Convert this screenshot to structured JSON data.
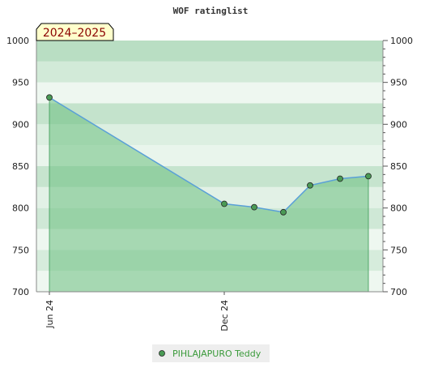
{
  "chart_data": {
    "type": "area",
    "title": "WOF ratinglist",
    "season_label": "2024–2025",
    "ylim": [
      700,
      1000
    ],
    "y_ticks": [
      700,
      750,
      800,
      850,
      900,
      950,
      1000
    ],
    "x_ticks": [
      "Jun 24",
      "Dec 24"
    ],
    "grid": false,
    "legend_position": "bottom",
    "series": [
      {
        "name": "PIHLAJAPURO Teddy",
        "values": [
          932,
          805,
          801,
          795,
          827,
          835,
          838
        ]
      }
    ],
    "colors": {
      "line": "#5aa0d8",
      "fill": "#6cbf80",
      "marker": "#4a9a55",
      "legend_text": "#3a9a3a",
      "season_bg": "#ffffcc",
      "season_text": "#8b0000"
    }
  }
}
